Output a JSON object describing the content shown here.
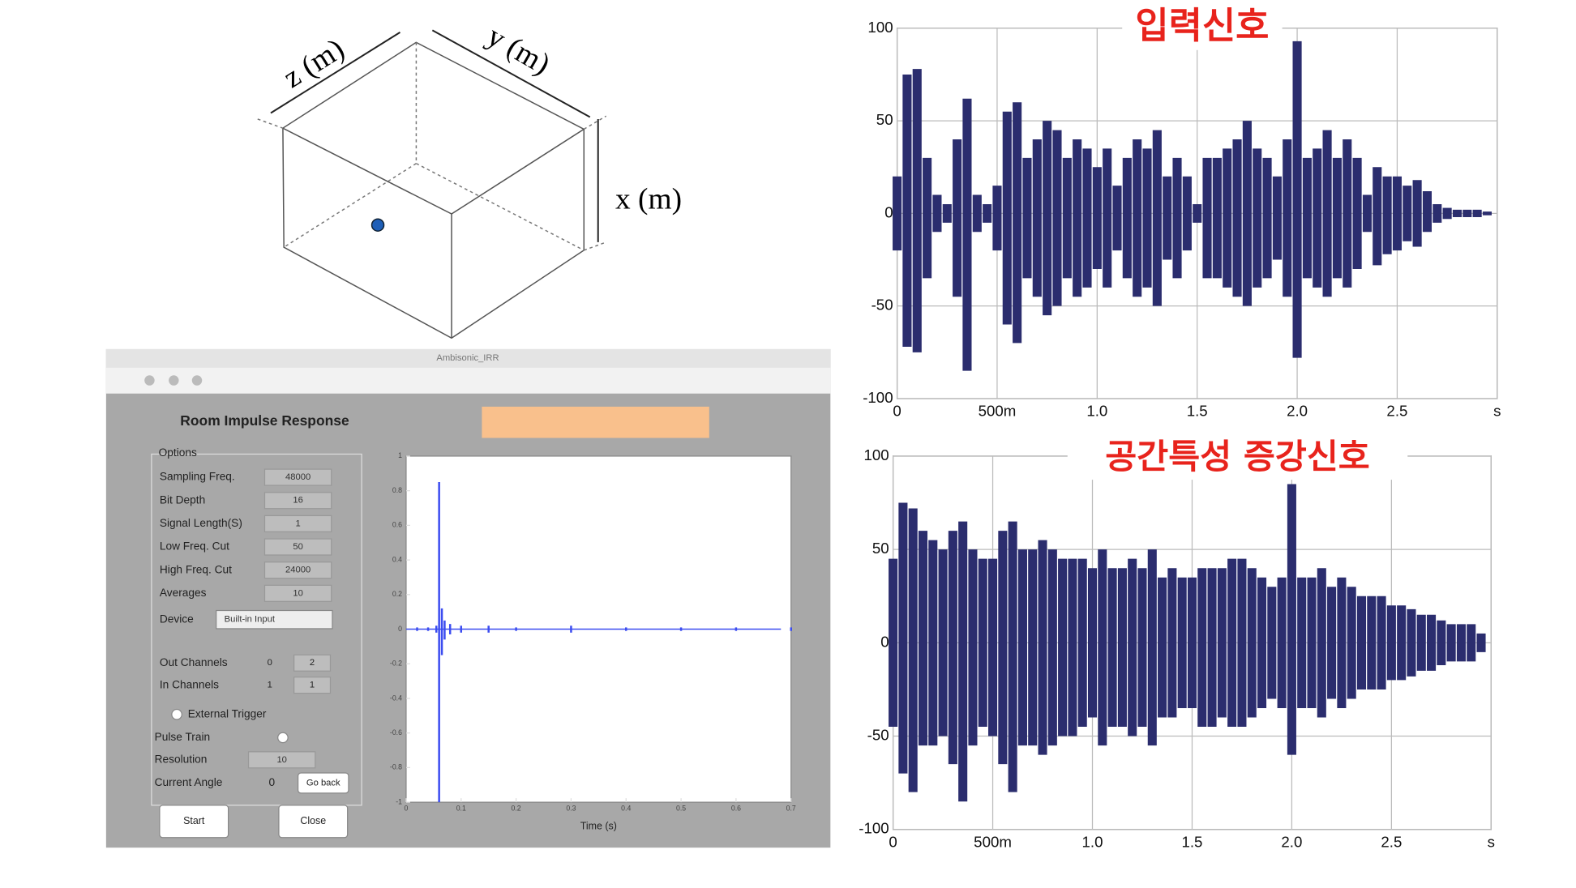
{
  "diagram": {
    "z_label": "z (m)",
    "y_label": "y (m)",
    "x_label": "x (m)"
  },
  "app": {
    "window_title": "Ambisonic_IRR",
    "panel_title": "Room Impulse Response",
    "options_label": "Options",
    "fields": [
      {
        "label": "Sampling Freq.",
        "value": "48000"
      },
      {
        "label": "Bit Depth",
        "value": "16"
      },
      {
        "label": "Signal Length(S)",
        "value": "1"
      },
      {
        "label": "Low Freq. Cut",
        "value": "50"
      },
      {
        "label": "High Freq. Cut",
        "value": "24000"
      },
      {
        "label": "Averages",
        "value": "10"
      }
    ],
    "device_label": "Device",
    "device_value": "Built-in Input",
    "channels": [
      {
        "label": "Out Channels",
        "from": "0",
        "to": "2"
      },
      {
        "label": "In Channels",
        "from": "1",
        "to": "1"
      }
    ],
    "external_trigger": "External Trigger",
    "pulse_train": "Pulse Train",
    "resolution_label": "Resolution",
    "resolution_value": "10",
    "current_angle_label": "Current Angle",
    "current_angle_value": "0",
    "go_back": "Go back",
    "start": "Start",
    "close": "Close"
  },
  "chart_data": [
    {
      "type": "waveform",
      "x_label": "Time (s)",
      "color": "#3b4cf0",
      "x": [
        0.02,
        0.04,
        0.055,
        0.06,
        0.065,
        0.07,
        0.08,
        0.1,
        0.15,
        0.2,
        0.3,
        0.4,
        0.5,
        0.6,
        0.7
      ],
      "upper": [
        0.01,
        0.01,
        0.02,
        0.85,
        0.12,
        0.05,
        0.03,
        0.02,
        0.02,
        0.01,
        0.02,
        0.01,
        0.01,
        0.01,
        0.01
      ],
      "lower": [
        -0.01,
        -0.01,
        -0.02,
        -1,
        -0.15,
        -0.06,
        -0.03,
        -0.02,
        -0.02,
        -0.01,
        -0.02,
        -0.01,
        -0.01,
        -0.01,
        -0.01
      ],
      "xlim": [
        0,
        0.7
      ],
      "xticks": [
        0,
        0.1,
        0.2,
        0.3,
        0.4,
        0.5,
        0.6,
        0.7
      ],
      "ylim": [
        -1,
        1
      ],
      "yticks": [
        -1,
        -0.8,
        -0.6,
        -0.4,
        -0.2,
        0,
        0.2,
        0.4,
        0.6,
        0.8,
        1
      ],
      "grid": false
    },
    {
      "type": "waveform",
      "title": "입력신호",
      "color": "#2b2d6e",
      "x": [
        0,
        0.05,
        0.1,
        0.15,
        0.2,
        0.25,
        0.3,
        0.35,
        0.4,
        0.45,
        0.5,
        0.55,
        0.6,
        0.65,
        0.7,
        0.75,
        0.8,
        0.85,
        0.9,
        0.95,
        1,
        1.05,
        1.1,
        1.15,
        1.2,
        1.25,
        1.3,
        1.35,
        1.4,
        1.45,
        1.5,
        1.55,
        1.6,
        1.65,
        1.7,
        1.75,
        1.8,
        1.85,
        1.9,
        1.95,
        2,
        2.05,
        2.1,
        2.15,
        2.2,
        2.25,
        2.3,
        2.35,
        2.4,
        2.45,
        2.5,
        2.55,
        2.6,
        2.65,
        2.7,
        2.75,
        2.8,
        2.85,
        2.9,
        2.95
      ],
      "upper": [
        20,
        75,
        78,
        30,
        10,
        5,
        40,
        62,
        10,
        5,
        15,
        55,
        60,
        30,
        40,
        50,
        45,
        30,
        40,
        35,
        25,
        35,
        15,
        30,
        40,
        35,
        45,
        20,
        30,
        20,
        5,
        30,
        30,
        35,
        40,
        50,
        35,
        30,
        20,
        40,
        93,
        30,
        35,
        45,
        30,
        40,
        30,
        10,
        25,
        20,
        20,
        15,
        18,
        12,
        5,
        3,
        2,
        2,
        2,
        1
      ],
      "lower": [
        -20,
        -72,
        -75,
        -35,
        -10,
        -5,
        -45,
        -85,
        -10,
        -5,
        -20,
        -60,
        -70,
        -35,
        -45,
        -55,
        -50,
        -35,
        -45,
        -40,
        -30,
        -40,
        -20,
        -35,
        -45,
        -40,
        -50,
        -25,
        -35,
        -20,
        -5,
        -35,
        -35,
        -40,
        -45,
        -50,
        -40,
        -35,
        -25,
        -45,
        -78,
        -35,
        -40,
        -45,
        -35,
        -40,
        -30,
        -10,
        -28,
        -22,
        -20,
        -15,
        -18,
        -10,
        -5,
        -3,
        -2,
        -2,
        -2,
        -1
      ],
      "xlim": [
        0,
        3
      ],
      "xticks": [
        0,
        {
          "value": 0.5,
          "label": "500m"
        },
        {
          "value": 1,
          "label": "1.0"
        },
        1.5,
        {
          "value": 2,
          "label": "2.0"
        },
        2.5,
        {
          "value": 3,
          "label": "s"
        }
      ],
      "ylim": [
        -100,
        100
      ],
      "yticks": [
        -100,
        -50,
        0,
        50,
        100
      ],
      "grid": true
    },
    {
      "type": "waveform",
      "title": "공간특성 증강신호",
      "color": "#2b2d6e",
      "x": [
        0,
        0.05,
        0.1,
        0.15,
        0.2,
        0.25,
        0.3,
        0.35,
        0.4,
        0.45,
        0.5,
        0.55,
        0.6,
        0.65,
        0.7,
        0.75,
        0.8,
        0.85,
        0.9,
        0.95,
        1,
        1.05,
        1.1,
        1.15,
        1.2,
        1.25,
        1.3,
        1.35,
        1.4,
        1.45,
        1.5,
        1.55,
        1.6,
        1.65,
        1.7,
        1.75,
        1.8,
        1.85,
        1.9,
        1.95,
        2,
        2.05,
        2.1,
        2.15,
        2.2,
        2.25,
        2.3,
        2.35,
        2.4,
        2.45,
        2.5,
        2.55,
        2.6,
        2.65,
        2.7,
        2.75,
        2.8,
        2.85,
        2.9,
        2.95
      ],
      "upper": [
        45,
        75,
        72,
        60,
        55,
        50,
        60,
        65,
        50,
        45,
        45,
        60,
        65,
        50,
        50,
        55,
        50,
        45,
        45,
        45,
        40,
        50,
        40,
        40,
        45,
        40,
        50,
        35,
        40,
        35,
        35,
        40,
        40,
        40,
        45,
        45,
        40,
        35,
        30,
        35,
        85,
        35,
        35,
        40,
        30,
        35,
        30,
        25,
        25,
        25,
        20,
        20,
        18,
        15,
        15,
        12,
        10,
        10,
        10,
        5
      ],
      "lower": [
        -45,
        -70,
        -80,
        -55,
        -55,
        -50,
        -65,
        -85,
        -55,
        -45,
        -50,
        -65,
        -80,
        -55,
        -55,
        -60,
        -55,
        -50,
        -50,
        -45,
        -40,
        -55,
        -45,
        -45,
        -50,
        -45,
        -55,
        -40,
        -40,
        -35,
        -35,
        -45,
        -45,
        -40,
        -45,
        -45,
        -40,
        -35,
        -30,
        -35,
        -60,
        -35,
        -35,
        -40,
        -30,
        -35,
        -30,
        -25,
        -25,
        -25,
        -20,
        -20,
        -18,
        -15,
        -15,
        -12,
        -10,
        -10,
        -10,
        -5
      ],
      "xlim": [
        0,
        3
      ],
      "xticks": [
        0,
        {
          "value": 0.5,
          "label": "500m"
        },
        {
          "value": 1,
          "label": "1.0"
        },
        1.5,
        {
          "value": 2,
          "label": "2.0"
        },
        2.5,
        {
          "value": 3,
          "label": "s"
        }
      ],
      "ylim": [
        -100,
        100
      ],
      "yticks": [
        -100,
        -50,
        0,
        50,
        100
      ],
      "grid": true
    }
  ]
}
